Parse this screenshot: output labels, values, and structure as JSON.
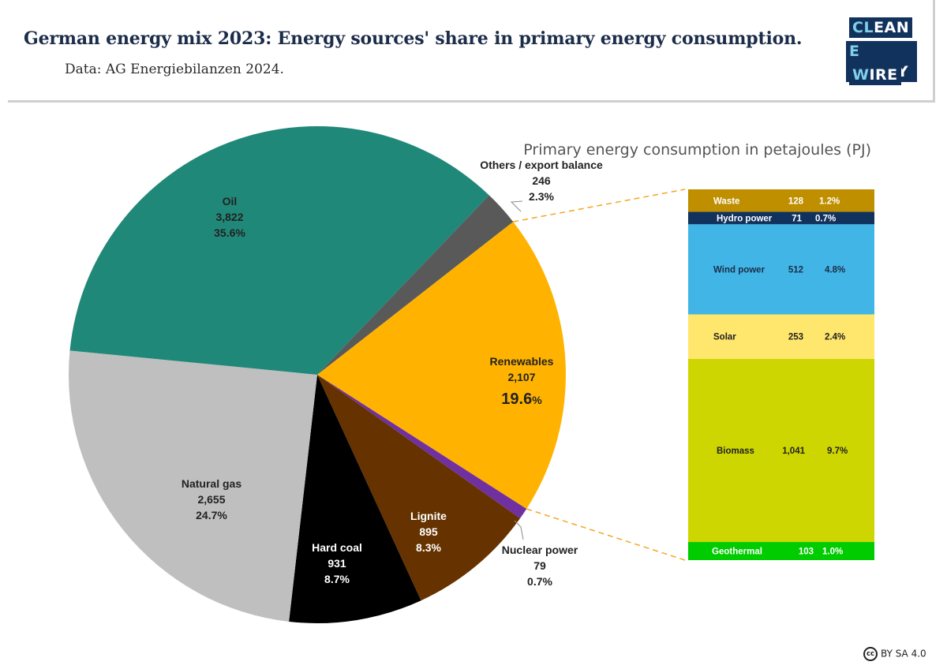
{
  "header": {
    "title": "German energy mix 2023: Energy sources' share in primary energy consumption.",
    "subtitle": "Data: AG Energiebilanzen 2024.",
    "logo": [
      "CLEAN",
      "ENERGY",
      "WIRE"
    ]
  },
  "license": {
    "text": "BY SA 4.0",
    "icon": "cc-icon"
  },
  "chart_data": [
    {
      "type": "pie",
      "title": "",
      "slices": [
        {
          "name": "Renewables",
          "value": 2107,
          "value_label": "2,107",
          "pct_number": "19.6",
          "pct_sign": "%",
          "color": "#ffb300",
          "label_color": "#222222"
        },
        {
          "name": "Nuclear power",
          "value": 79,
          "value_label": "79",
          "pct": "0.7%",
          "color": "#7030a0",
          "label_color": "#222222"
        },
        {
          "name": "Lignite",
          "value": 895,
          "value_label": "895",
          "pct": "8.3%",
          "color": "#663300",
          "label_color": "#ffffff"
        },
        {
          "name": "Hard coal",
          "value": 931,
          "value_label": "931",
          "pct": "8.7%",
          "color": "#000000",
          "label_color": "#ffffff"
        },
        {
          "name": "Natural gas",
          "value": 2655,
          "value_label": "2,655",
          "pct": "24.7%",
          "color": "#bfbfbf",
          "label_color": "#222222"
        },
        {
          "name": "Oil",
          "value": 3822,
          "value_label": "3,822",
          "pct": "35.6%",
          "color": "#208878",
          "label_color": "#222222"
        },
        {
          "name": "Others / export balance",
          "value": 246,
          "value_label": "246",
          "pct": "2.3%",
          "color": "#595959",
          "label_color": "#222222"
        }
      ]
    },
    {
      "type": "bar",
      "title": "Primary energy consumption in petajoules (PJ)",
      "orientation": "stacked-column",
      "segments": [
        {
          "name": "Waste",
          "value": 128,
          "value_label": "128",
          "pct": "1.2%",
          "color": "#bf8f00",
          "text_color": "#ffffff"
        },
        {
          "name": "Hydro power",
          "value": 71,
          "value_label": "71",
          "pct": "0.7%",
          "color": "#12325e",
          "text_color": "#ffffff"
        },
        {
          "name": "Wind power",
          "value": 512,
          "value_label": "512",
          "pct": "4.8%",
          "color": "#41b6e6",
          "text_color": "#1c2d4a"
        },
        {
          "name": "Solar",
          "value": 253,
          "value_label": "253",
          "pct": "2.4%",
          "color": "#ffe66d",
          "text_color": "#222222"
        },
        {
          "name": "Biomass",
          "value": 1041,
          "value_label": "1,041",
          "pct": "9.7%",
          "color": "#cdd600",
          "text_color": "#222222"
        },
        {
          "name": "Geothermal",
          "value": 103,
          "value_label": "103",
          "pct": "1.0%",
          "color": "#00cc00",
          "text_color": "#ffffff"
        }
      ]
    }
  ]
}
